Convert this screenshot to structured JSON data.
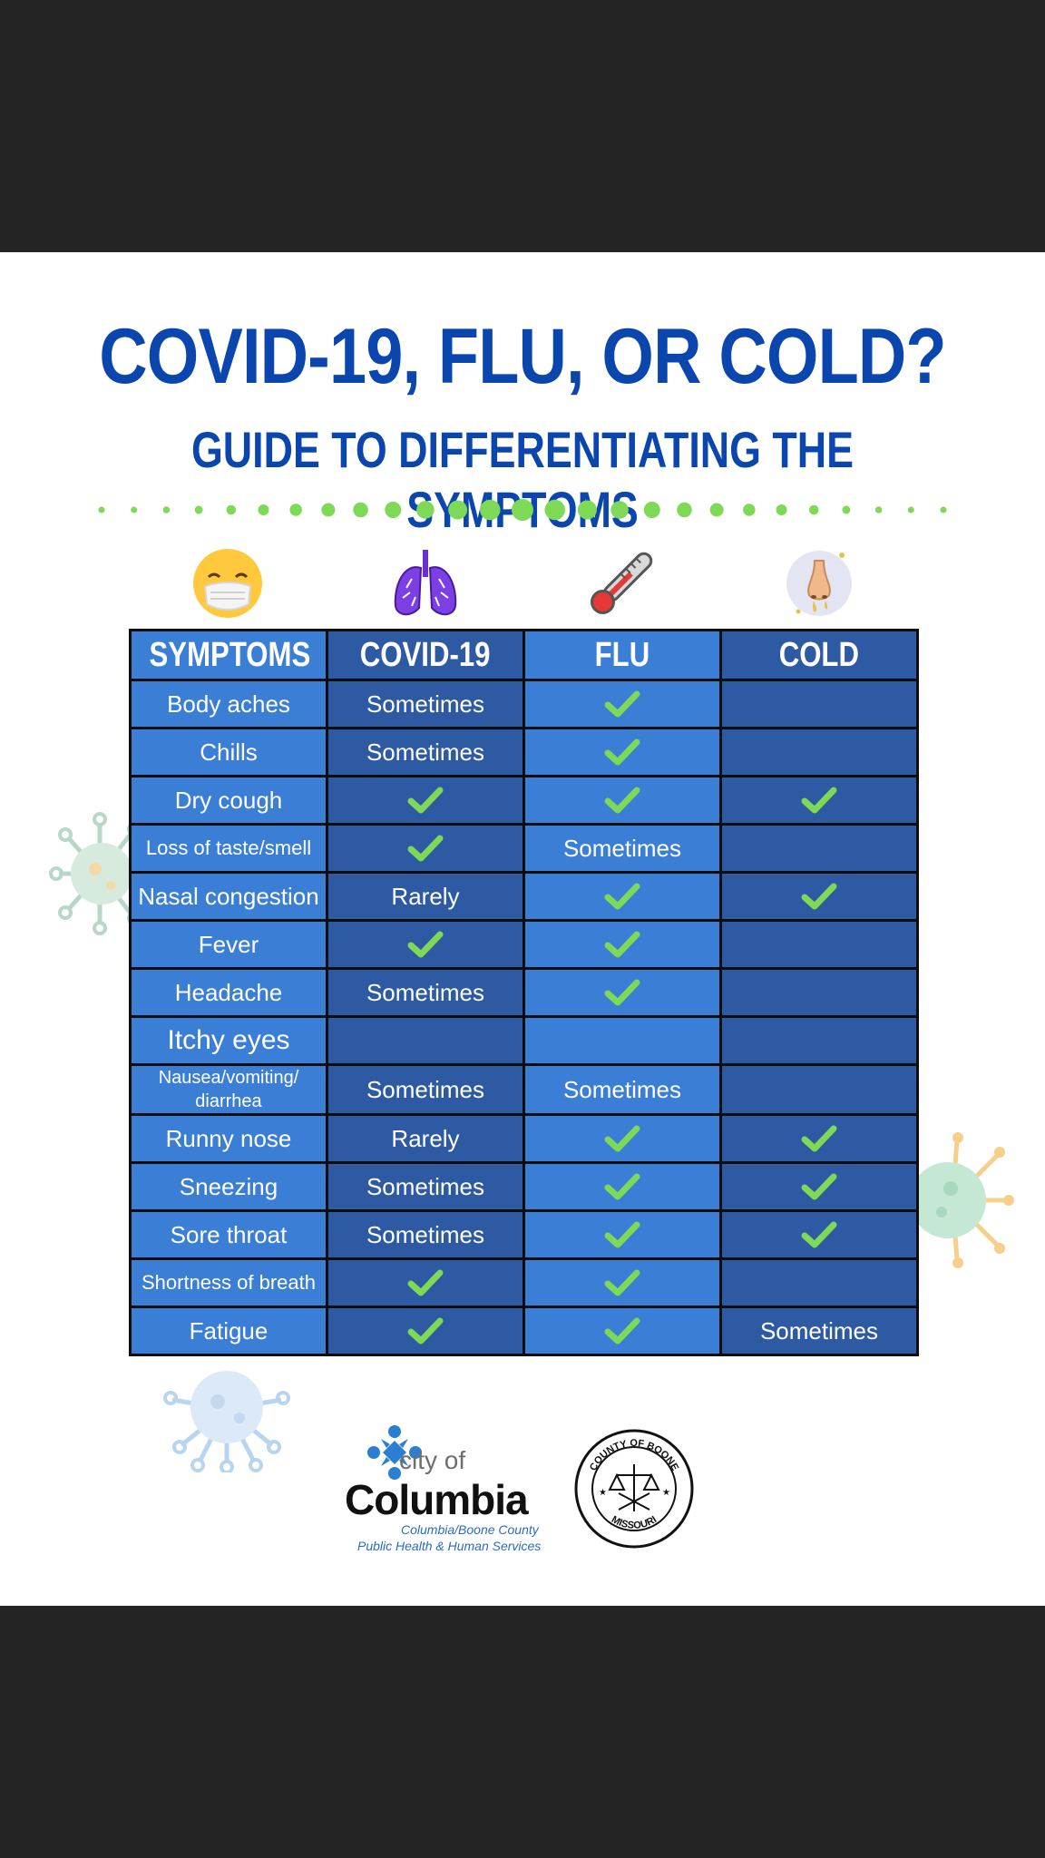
{
  "title": "COVID-19, FLU, OR COLD?",
  "subtitle": "GUIDE TO DIFFERENTIATING THE SYMPTOMS",
  "colors": {
    "title_blue": "#0a46ae",
    "dot_green": "#7ed957",
    "cell_light": "#3a7ed6",
    "cell_dark": "#2e5aa4",
    "check_green": "#7ed957"
  },
  "icons": [
    "face-mask-emoji-icon",
    "lungs-icon",
    "thermometer-icon",
    "runny-nose-icon"
  ],
  "table": {
    "headers": [
      "SYMPTOMS",
      "COVID-19",
      "FLU",
      "COLD"
    ],
    "rows": [
      {
        "symptom": "Body aches",
        "covid": "Sometimes",
        "flu": "check",
        "cold": ""
      },
      {
        "symptom": "Chills",
        "covid": "Sometimes",
        "flu": "check",
        "cold": ""
      },
      {
        "symptom": "Dry cough",
        "covid": "check",
        "flu": "check",
        "cold": "check"
      },
      {
        "symptom": "Loss of taste/smell",
        "covid": "check",
        "flu": "Sometimes",
        "cold": ""
      },
      {
        "symptom": "Nasal congestion",
        "covid": "Rarely",
        "flu": "check",
        "cold": "check"
      },
      {
        "symptom": "Fever",
        "covid": "check",
        "flu": "check",
        "cold": ""
      },
      {
        "symptom": "Headache",
        "covid": "Sometimes",
        "flu": "check",
        "cold": ""
      },
      {
        "symptom": "Itchy eyes",
        "covid": "",
        "flu": "",
        "cold": ""
      },
      {
        "symptom": "Nausea/vomiting/ diarrhea",
        "covid": "Sometimes",
        "flu": "Sometimes",
        "cold": ""
      },
      {
        "symptom": "Runny nose",
        "covid": "Rarely",
        "flu": "check",
        "cold": "check"
      },
      {
        "symptom": "Sneezing",
        "covid": "Sometimes",
        "flu": "check",
        "cold": "check"
      },
      {
        "symptom": "Sore throat",
        "covid": "Sometimes",
        "flu": "check",
        "cold": "check"
      },
      {
        "symptom": "Shortness of breath",
        "covid": "check",
        "flu": "check",
        "cold": ""
      },
      {
        "symptom": "Fatigue",
        "covid": "check",
        "flu": "check",
        "cold": "Sometimes"
      }
    ]
  },
  "logos": {
    "city_of": "city of",
    "columbia": "Columbia",
    "dept_line1": "Columbia/Boone County",
    "dept_line2": "Public Health & Human Services",
    "seal_top": "COUNTY OF BOONE",
    "seal_bottom": "MISSOURI"
  }
}
